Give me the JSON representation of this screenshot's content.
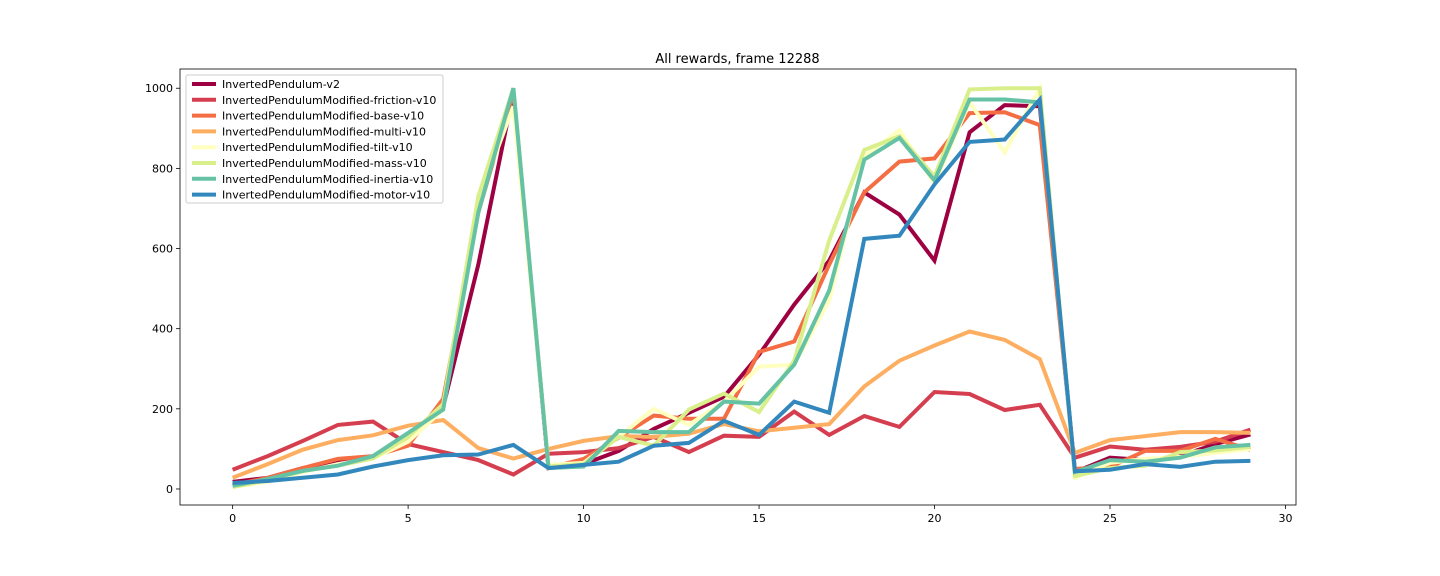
{
  "chart_data": {
    "type": "line",
    "title": "All rewards, frame 12288",
    "xlabel": "",
    "ylabel": "",
    "xlim": [
      -1.5,
      30.3
    ],
    "ylim": [
      -40,
      1048
    ],
    "xticks": [
      0,
      5,
      10,
      15,
      20,
      25,
      30
    ],
    "yticks": [
      0,
      200,
      400,
      600,
      800,
      1000
    ],
    "grid": false,
    "legend_position": "top-left",
    "x": [
      0,
      1,
      2,
      3,
      4,
      5,
      6,
      7,
      8,
      9,
      10,
      11,
      12,
      13,
      14,
      15,
      16,
      17,
      18,
      19,
      20,
      21,
      22,
      23,
      24,
      25,
      26,
      27,
      28,
      29
    ],
    "series": [
      {
        "name": "InvertedPendulum-v2",
        "color": "#9e0142",
        "values": [
          18,
          28,
          52,
          68,
          80,
          118,
          205,
          560,
          990,
          52,
          62,
          95,
          150,
          190,
          230,
          335,
          460,
          570,
          740,
          685,
          570,
          890,
          958,
          955,
          42,
          78,
          72,
          82,
          112,
          136
        ]
      },
      {
        "name": "InvertedPendulumModified-friction-v10",
        "color": "#d53e4f",
        "values": [
          48,
          82,
          120,
          160,
          168,
          112,
          92,
          72,
          36,
          88,
          92,
          102,
          130,
          92,
          133,
          130,
          193,
          135,
          182,
          155,
          242,
          237,
          197,
          210,
          78,
          106,
          98,
          105,
          118,
          148
        ]
      },
      {
        "name": "InvertedPendulumModified-base-v10",
        "color": "#f46d43",
        "values": [
          10,
          28,
          52,
          75,
          82,
          108,
          225,
          690,
          990,
          52,
          75,
          128,
          183,
          175,
          175,
          342,
          368,
          560,
          740,
          817,
          825,
          938,
          940,
          908,
          50,
          55,
          95,
          95,
          125,
          98
        ]
      },
      {
        "name": "InvertedPendulumModified-multi-v10",
        "color": "#fdae61",
        "values": [
          28,
          62,
          98,
          122,
          134,
          158,
          172,
          102,
          76,
          100,
          120,
          132,
          130,
          138,
          162,
          144,
          153,
          162,
          256,
          320,
          358,
          393,
          372,
          324,
          90,
          122,
          132,
          142,
          142,
          140
        ]
      },
      {
        "name": "InvertedPendulumModified-tilt-v10",
        "color": "#ffffbf",
        "values": [
          5,
          18,
          42,
          62,
          76,
          118,
          198,
          720,
          955,
          60,
          65,
          130,
          200,
          160,
          218,
          305,
          310,
          470,
          830,
          895,
          762,
          965,
          840,
          1000,
          28,
          65,
          75,
          80,
          90,
          100
        ]
      },
      {
        "name": "InvertedPendulumModified-mass-v10",
        "color": "#d9ef8b",
        "values": [
          5,
          22,
          45,
          58,
          76,
          130,
          212,
          730,
          1000,
          56,
          62,
          130,
          108,
          198,
          238,
          192,
          320,
          620,
          846,
          880,
          780,
          997,
          1000,
          1000,
          32,
          52,
          58,
          92,
          96,
          105
        ]
      },
      {
        "name": "InvertedPendulumModified-inertia-v10",
        "color": "#66c2a5",
        "values": [
          8,
          25,
          45,
          58,
          82,
          140,
          198,
          690,
          1000,
          52,
          56,
          145,
          142,
          142,
          218,
          213,
          310,
          495,
          822,
          876,
          770,
          972,
          972,
          965,
          42,
          72,
          68,
          78,
          104,
          110
        ]
      },
      {
        "name": "InvertedPendulumModified-motor-v10",
        "color": "#3288bd",
        "values": [
          15,
          20,
          28,
          36,
          56,
          72,
          84,
          86,
          110,
          52,
          60,
          68,
          108,
          115,
          170,
          135,
          218,
          190,
          624,
          632,
          760,
          866,
          872,
          972,
          44,
          48,
          62,
          55,
          68,
          70
        ]
      }
    ]
  }
}
